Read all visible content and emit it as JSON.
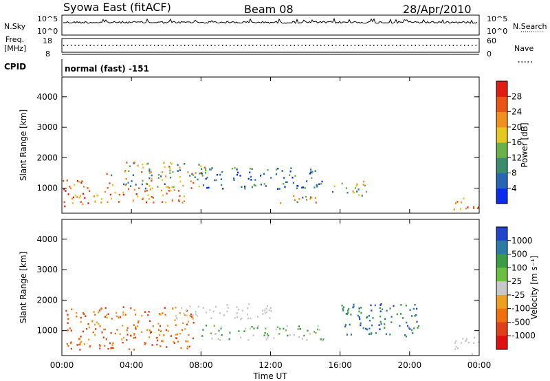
{
  "header": {
    "station": "Syowa East (fitACF)",
    "beam": "Beam 08",
    "date": "28/Apr/2010"
  },
  "panels": {
    "nsky": {
      "label": "N.Sky",
      "tick_high": "10^5",
      "tick_low": "10^0"
    },
    "nsearch": {
      "label": "N.Search",
      "tick_high": "10^5",
      "tick_low": "10^0"
    },
    "freq": {
      "label_line1": "Freq.",
      "label_line2": "[MHz]",
      "tick_high": "18",
      "tick_low": "8"
    },
    "nave": {
      "label": "Nave",
      "tick_high": "60",
      "tick_low": "0"
    },
    "cpid": {
      "label": "CPID",
      "text": "normal (fast) -151"
    }
  },
  "chart_data": [
    {
      "type": "heatmap",
      "name": "power",
      "ylabel": "Slant Range [km]",
      "xlabel": "Time UT",
      "x_ticks": [
        "00:00",
        "04:00",
        "08:00",
        "12:00",
        "16:00",
        "20:00",
        "00:00"
      ],
      "xlim_hours": [
        0,
        24
      ],
      "y_ticks": [
        1000,
        2000,
        3000,
        4000
      ],
      "ylim_km": [
        180,
        4650
      ],
      "colorbar": {
        "label": "Power [dB]",
        "ticks": [
          "4",
          "8",
          "12",
          "16",
          "20",
          "24",
          "28"
        ],
        "colors": [
          "#0a2cf0",
          "#2a64b4",
          "#3a8c6c",
          "#6cb04c",
          "#e6c81e",
          "#f0901e",
          "#ea5416",
          "#e01c14"
        ],
        "range": [
          0,
          32
        ]
      },
      "regions": [
        {
          "t": [
            0.0,
            1.6
          ],
          "r": [
            300,
            1300
          ],
          "level": "high"
        },
        {
          "t": [
            1.8,
            7.6
          ],
          "r": [
            550,
            1000
          ],
          "level": "high"
        },
        {
          "t": [
            2.5,
            8.2
          ],
          "r": [
            1000,
            1900
          ],
          "level": "mid"
        },
        {
          "t": [
            8.0,
            15.0
          ],
          "r": [
            1000,
            1700
          ],
          "level": "low"
        },
        {
          "t": [
            12.5,
            14.8
          ],
          "r": [
            500,
            800
          ],
          "level": "mid"
        },
        {
          "t": [
            15.5,
            17.5
          ],
          "r": [
            750,
            1250
          ],
          "level": "mid"
        },
        {
          "t": [
            22.5,
            24.0
          ],
          "r": [
            250,
            700
          ],
          "level": "high"
        }
      ]
    },
    {
      "type": "heatmap",
      "name": "velocity",
      "ylabel": "Slant Range [km]",
      "xlabel": "Time UT",
      "x_ticks": [
        "00:00",
        "04:00",
        "08:00",
        "12:00",
        "16:00",
        "20:00",
        "00:00"
      ],
      "xlim_hours": [
        0,
        24
      ],
      "y_ticks": [
        1000,
        2000,
        3000,
        4000
      ],
      "ylim_km": [
        180,
        4650
      ],
      "colorbar": {
        "label": "Velocity [m s⁻¹]",
        "ticks": [
          "1000",
          "500",
          "100",
          "25",
          "-25",
          "-100",
          "-500",
          "-1000"
        ],
        "colors": [
          "#2244c8",
          "#2c7aa6",
          "#3c9c46",
          "#6cc040",
          "#c8c8c8",
          "#f0a020",
          "#f07010",
          "#e04018",
          "#e01010"
        ],
        "range": [
          -1200,
          1200
        ]
      },
      "regions": [
        {
          "t": [
            0.2,
            7.6
          ],
          "r": [
            400,
            1800
          ],
          "level": "away"
        },
        {
          "t": [
            6.5,
            12.0
          ],
          "r": [
            1400,
            1900
          ],
          "level": "zero"
        },
        {
          "t": [
            8.0,
            15.0
          ],
          "r": [
            700,
            1200
          ],
          "level": "toward"
        },
        {
          "t": [
            16.0,
            20.5
          ],
          "r": [
            800,
            1900
          ],
          "level": "toward-strong"
        },
        {
          "t": [
            22.5,
            24.0
          ],
          "r": [
            250,
            800
          ],
          "level": "zero"
        }
      ]
    }
  ]
}
